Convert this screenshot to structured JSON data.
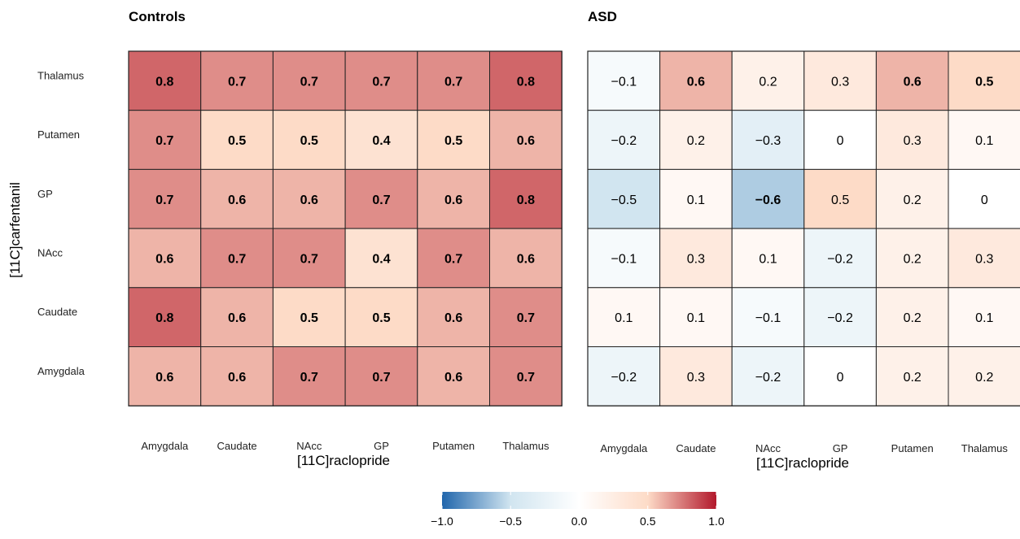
{
  "chart_data": [
    {
      "type": "heatmap",
      "title": "Controls",
      "xlabel": "[11C]raclopride",
      "ylabel": "[11C]carfentanil",
      "x_categories": [
        "Amygdala",
        "Caudate",
        "NAcc",
        "GP",
        "Putamen",
        "Thalamus"
      ],
      "y_categories": [
        "Thalamus",
        "Putamen",
        "GP",
        "NAcc",
        "Caudate",
        "Amygdala"
      ],
      "values": [
        [
          0.8,
          0.7,
          0.7,
          0.7,
          0.7,
          0.8
        ],
        [
          0.7,
          0.5,
          0.5,
          0.4,
          0.5,
          0.6
        ],
        [
          0.7,
          0.6,
          0.6,
          0.7,
          0.6,
          0.8
        ],
        [
          0.6,
          0.7,
          0.7,
          0.4,
          0.7,
          0.6
        ],
        [
          0.8,
          0.6,
          0.5,
          0.5,
          0.6,
          0.7
        ],
        [
          0.6,
          0.6,
          0.7,
          0.7,
          0.6,
          0.7
        ]
      ],
      "labels": [
        [
          "0.8",
          "0.7",
          "0.7",
          "0.7",
          "0.7",
          "0.8"
        ],
        [
          "0.7",
          "0.5",
          "0.5",
          "0.4",
          "0.5",
          "0.6"
        ],
        [
          "0.7",
          "0.6",
          "0.6",
          "0.7",
          "0.6",
          "0.8"
        ],
        [
          "0.6",
          "0.7",
          "0.7",
          "0.4",
          "0.7",
          "0.6"
        ],
        [
          "0.8",
          "0.6",
          "0.5",
          "0.5",
          "0.6",
          "0.7"
        ],
        [
          "0.6",
          "0.6",
          "0.7",
          "0.7",
          "0.6",
          "0.7"
        ]
      ],
      "bold": [
        [
          true,
          true,
          true,
          true,
          true,
          true
        ],
        [
          true,
          true,
          true,
          true,
          true,
          true
        ],
        [
          true,
          true,
          true,
          true,
          true,
          true
        ],
        [
          true,
          true,
          true,
          true,
          true,
          true
        ],
        [
          true,
          true,
          true,
          true,
          true,
          true
        ],
        [
          true,
          true,
          true,
          true,
          true,
          true
        ]
      ]
    },
    {
      "type": "heatmap",
      "title": "ASD",
      "xlabel": "[11C]raclopride",
      "ylabel": "",
      "x_categories": [
        "Amygdala",
        "Caudate",
        "NAcc",
        "GP",
        "Putamen",
        "Thalamus"
      ],
      "y_categories": [
        "Thalamus",
        "Putamen",
        "GP",
        "NAcc",
        "Caudate",
        "Amygdala"
      ],
      "values": [
        [
          -0.1,
          0.6,
          0.2,
          0.3,
          0.6,
          0.5
        ],
        [
          -0.2,
          0.2,
          -0.3,
          0,
          0.3,
          0.1
        ],
        [
          -0.5,
          0.1,
          -0.6,
          0.5,
          0.2,
          0
        ],
        [
          -0.1,
          0.3,
          0.1,
          -0.2,
          0.2,
          0.3
        ],
        [
          0.1,
          0.1,
          -0.1,
          -0.2,
          0.2,
          0.1
        ],
        [
          -0.2,
          0.3,
          -0.2,
          0,
          0.2,
          0.2
        ]
      ],
      "labels": [
        [
          "−0.1",
          "0.6",
          "0.2",
          "0.3",
          "0.6",
          "0.5"
        ],
        [
          "−0.2",
          "0.2",
          "−0.3",
          "0",
          "0.3",
          "0.1"
        ],
        [
          "−0.5",
          "0.1",
          "−0.6",
          "0.5",
          "0.2",
          "0"
        ],
        [
          "−0.1",
          "0.3",
          "0.1",
          "−0.2",
          "0.2",
          "0.3"
        ],
        [
          "0.1",
          "0.1",
          "−0.1",
          "−0.2",
          "0.2",
          "0.1"
        ],
        [
          "−0.2",
          "0.3",
          "−0.2",
          "0",
          "0.2",
          "0.2"
        ]
      ],
      "bold": [
        [
          false,
          true,
          false,
          false,
          true,
          true
        ],
        [
          false,
          false,
          false,
          false,
          false,
          false
        ],
        [
          false,
          false,
          true,
          false,
          false,
          false
        ],
        [
          false,
          false,
          false,
          false,
          false,
          false
        ],
        [
          false,
          false,
          false,
          false,
          false,
          false
        ],
        [
          false,
          false,
          false,
          false,
          false,
          false
        ]
      ]
    }
  ],
  "colorbar": {
    "range": [
      -1.0,
      1.0
    ],
    "ticks": [
      -1.0,
      -0.5,
      0.0,
      0.5,
      1.0
    ],
    "tick_labels": [
      "−1.0",
      "−0.5",
      "0.0",
      "0.5",
      "1.0"
    ],
    "colors": {
      "low": "#2166ac",
      "mid_low": "#d1e5f0",
      "mid": "#ffffff",
      "mid_high": "#fddbc7",
      "high": "#b2182b"
    }
  }
}
